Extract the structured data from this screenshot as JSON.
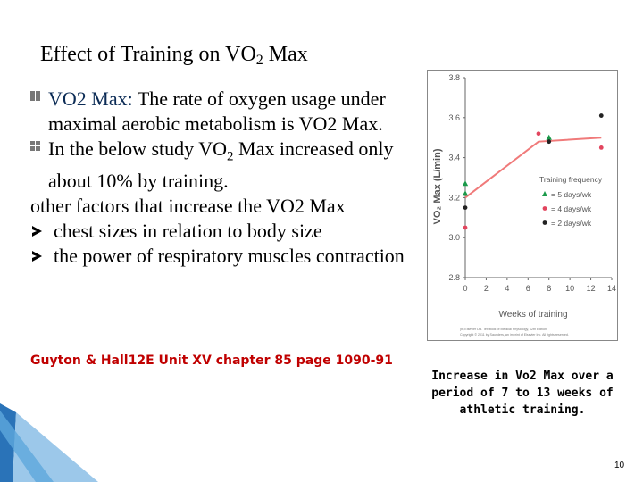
{
  "title": {
    "main": "Effect of Training on VO",
    "sub": "2",
    "tail": " Max"
  },
  "bullets": [
    {
      "lead": "VO2 Max:",
      "text": " The rate of oxygen usage under maximal aerobic metabolism is VO2 Max."
    },
    {
      "pre": " In the below study VO",
      "sub": "2",
      "post": " Max increased only about 10% by training."
    }
  ],
  "other_factors": "other factors that increase the VO2 Max",
  "sub_items": [
    "chest sizes in relation to body size",
    "the power of respiratory muscles contraction"
  ],
  "reference": "Guyton & Hall12E Unit XV chapter 85 page 1090-91",
  "caption": "Increase in Vo2 Max over a period of 7 to 13 weeks of athletic training.",
  "page_number": "10",
  "chart_data": {
    "type": "scatter",
    "ylabel": "VO₂ Max (L/min)",
    "xlabel": "Weeks of training",
    "x_ticks": [
      "0",
      "2",
      "4",
      "6",
      "8",
      "10",
      "12",
      "14"
    ],
    "y_ticks": [
      "2.8",
      "3.0",
      "3.2",
      "3.4",
      "3.6",
      "3.8"
    ],
    "xlim": [
      0,
      14
    ],
    "ylim": [
      2.8,
      3.8
    ],
    "legend_title": "Training frequency",
    "legend_position": "middle-right",
    "series": [
      {
        "name": "= 5 days/wk",
        "color": "#1a9a4a",
        "x": [
          0,
          0,
          8
        ],
        "y": [
          3.27,
          3.22,
          3.5
        ]
      },
      {
        "name": "= 4 days/wk",
        "color": "#e2455e",
        "x": [
          0,
          7,
          13
        ],
        "y": [
          3.05,
          3.52,
          3.45
        ]
      },
      {
        "name": "= 2 days/wk",
        "color": "#222222",
        "x": [
          0,
          8,
          13
        ],
        "y": [
          3.15,
          3.48,
          3.61
        ]
      }
    ],
    "trend": {
      "color": "#f07a7a",
      "x": [
        0,
        7,
        13
      ],
      "y": [
        3.2,
        3.48,
        3.5
      ]
    },
    "footnote_1": "(b) Elsevier Ltd. Textbook of Medical Physiology, 12th Edition",
    "footnote_2": "Copyright © 2011 by Saunders, an imprint of Elsevier Inc. All rights reserved."
  }
}
